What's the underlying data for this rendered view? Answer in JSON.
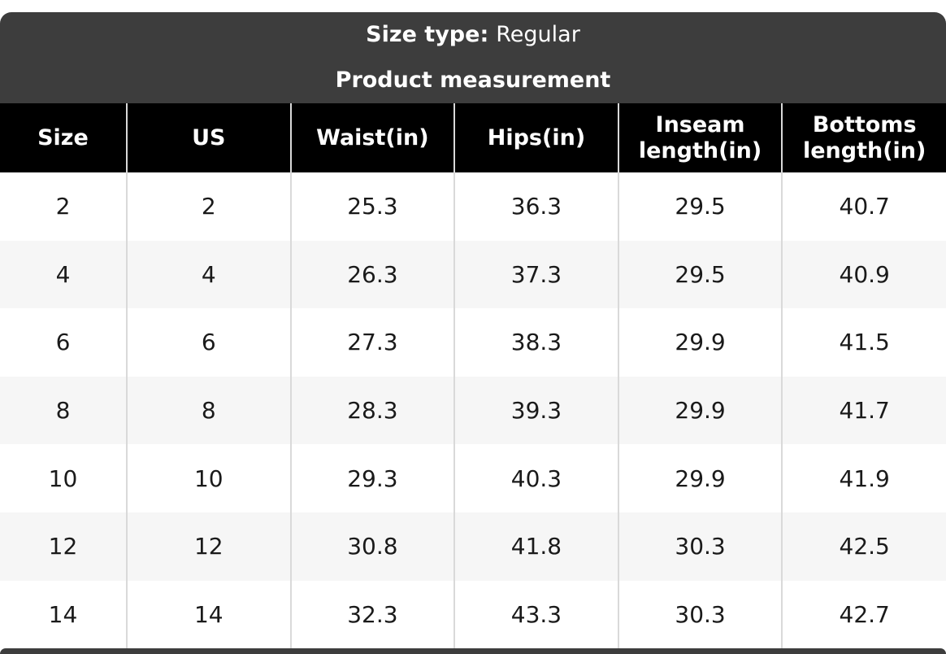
{
  "caption": {
    "size_type_label": "Size type:",
    "size_type_value": "Regular",
    "subtitle": "Product measurement"
  },
  "chart_data": {
    "type": "table",
    "title": "Size type: Regular",
    "subtitle": "Product measurement",
    "columns": [
      "Size",
      "US",
      "Waist(in)",
      "Hips(in)",
      "Inseam length(in)",
      "Bottoms length(in)"
    ],
    "rows": [
      [
        "2",
        "2",
        "25.3",
        "36.3",
        "29.5",
        "40.7"
      ],
      [
        "4",
        "4",
        "26.3",
        "37.3",
        "29.5",
        "40.9"
      ],
      [
        "6",
        "6",
        "27.3",
        "38.3",
        "29.9",
        "41.5"
      ],
      [
        "8",
        "8",
        "28.3",
        "39.3",
        "29.9",
        "41.7"
      ],
      [
        "10",
        "10",
        "29.3",
        "40.3",
        "29.9",
        "41.9"
      ],
      [
        "12",
        "12",
        "30.8",
        "41.8",
        "30.3",
        "42.5"
      ],
      [
        "14",
        "14",
        "32.3",
        "43.3",
        "30.3",
        "42.7"
      ]
    ]
  },
  "colors": {
    "caption_bg": "#3d3d3d",
    "header_bg": "#000000",
    "header_text": "#ffffff",
    "row_bg": "#ffffff",
    "row_alt_bg": "#f6f6f6",
    "divider": "#d9d9d9",
    "body_text": "#1a1a1a"
  }
}
